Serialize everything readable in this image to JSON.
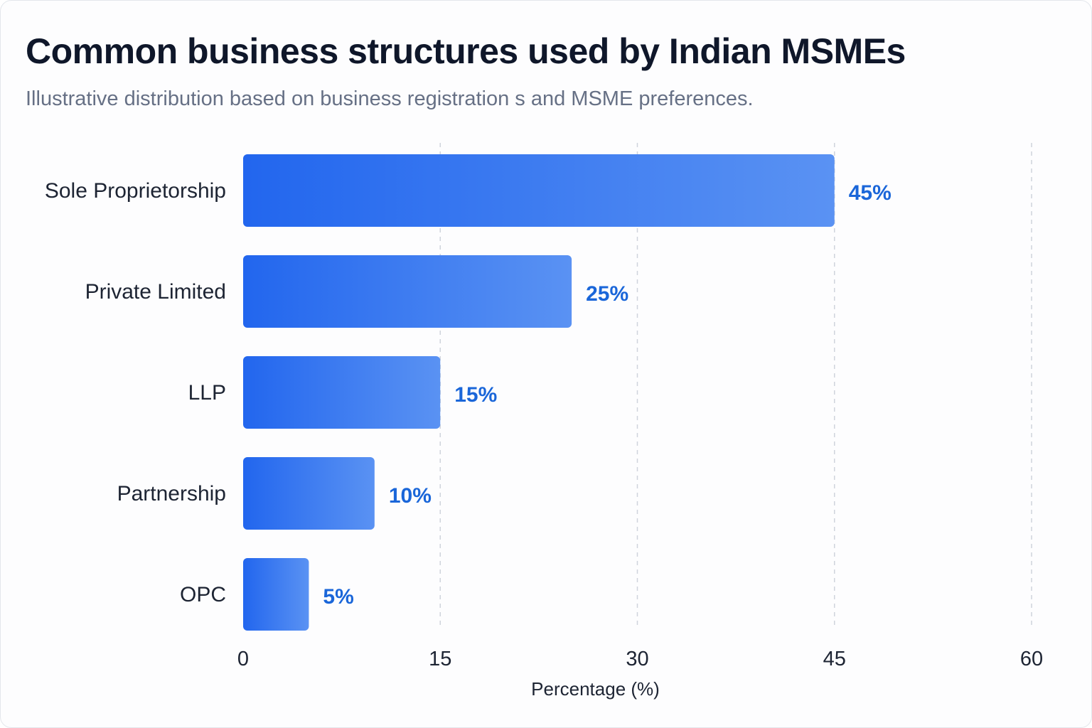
{
  "chart_data": {
    "type": "bar",
    "orientation": "horizontal",
    "title": "Common business structures used by Indian MSMEs",
    "subtitle": "Illustrative distribution based on business registration s and MSME preferences.",
    "categories": [
      "Sole Proprietorship",
      "Private Limited",
      "LLP",
      "Partnership",
      "OPC"
    ],
    "values": [
      45,
      25,
      15,
      10,
      5
    ],
    "value_labels": [
      "45%",
      "25%",
      "15%",
      "10%",
      "5%"
    ],
    "xlabel": "Percentage (%)",
    "ylabel": "",
    "xlim": [
      0,
      60
    ],
    "xticks": [
      0,
      15,
      30,
      45,
      60
    ],
    "xtick_labels": [
      "0",
      "15",
      "30",
      "45",
      "60"
    ],
    "grid": "vertical dashed",
    "bar_color": "#2b6ff0",
    "value_label_color": "#1a66d9"
  }
}
